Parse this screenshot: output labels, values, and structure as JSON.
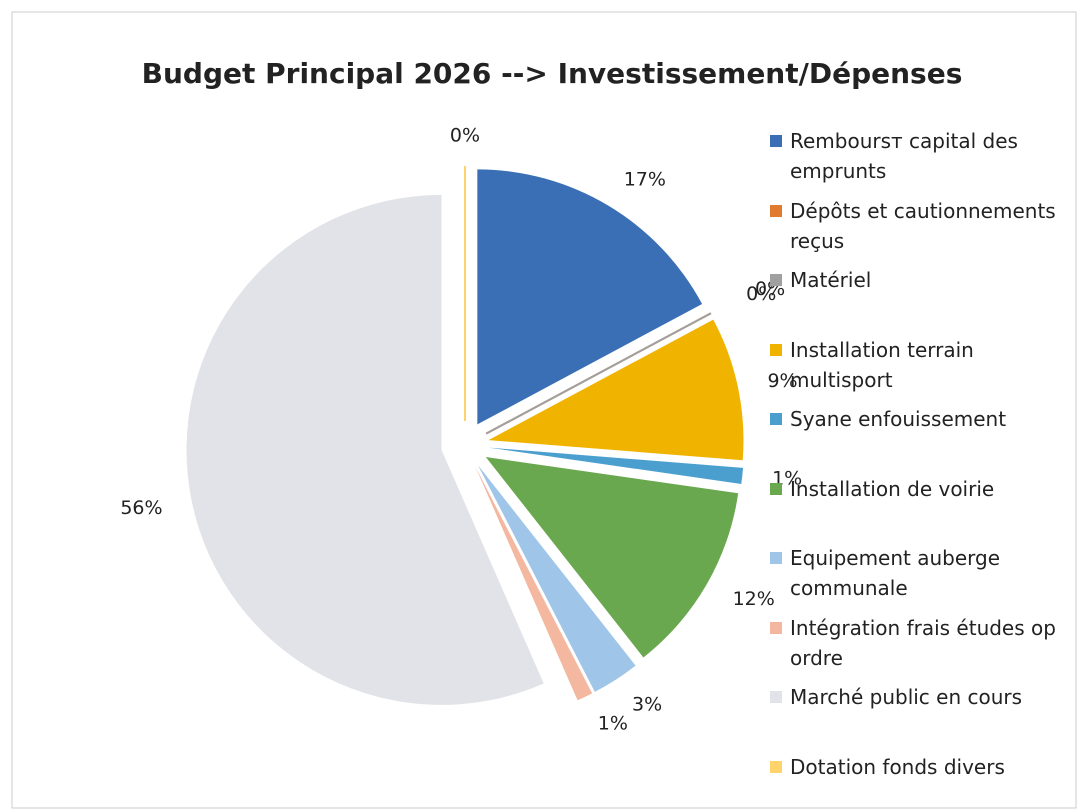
{
  "chart_data": {
    "type": "pie",
    "title": "Budget Principal 2026 --> Investissement/Dépenses",
    "categories": [
      "Remboursт capital des emprunts",
      "Dépôts et cautionnements reçus",
      "Matériel",
      "Installation terrain multisport",
      "Syane enfouissement",
      "Installation de voirie",
      "Equipement auberge communale",
      "Intégration frais études op ordre",
      "Marché public en cours",
      "Dotation fonds divers"
    ],
    "values": [
      17,
      0,
      0,
      9,
      1,
      12,
      3,
      1,
      56,
      0
    ],
    "value_labels": [
      "17%",
      "0%",
      "0%",
      "9%",
      "1%",
      "12%",
      "3%",
      "1%",
      "56%",
      "0%"
    ],
    "colors": [
      "#3a6fb5",
      "#e07b2f",
      "#a0a0a0",
      "#f0b400",
      "#4b9fcf",
      "#6aa84f",
      "#9fc5e8",
      "#f4b8a0",
      "#e2e3e8",
      "#ffd36b"
    ],
    "legend": "right"
  }
}
